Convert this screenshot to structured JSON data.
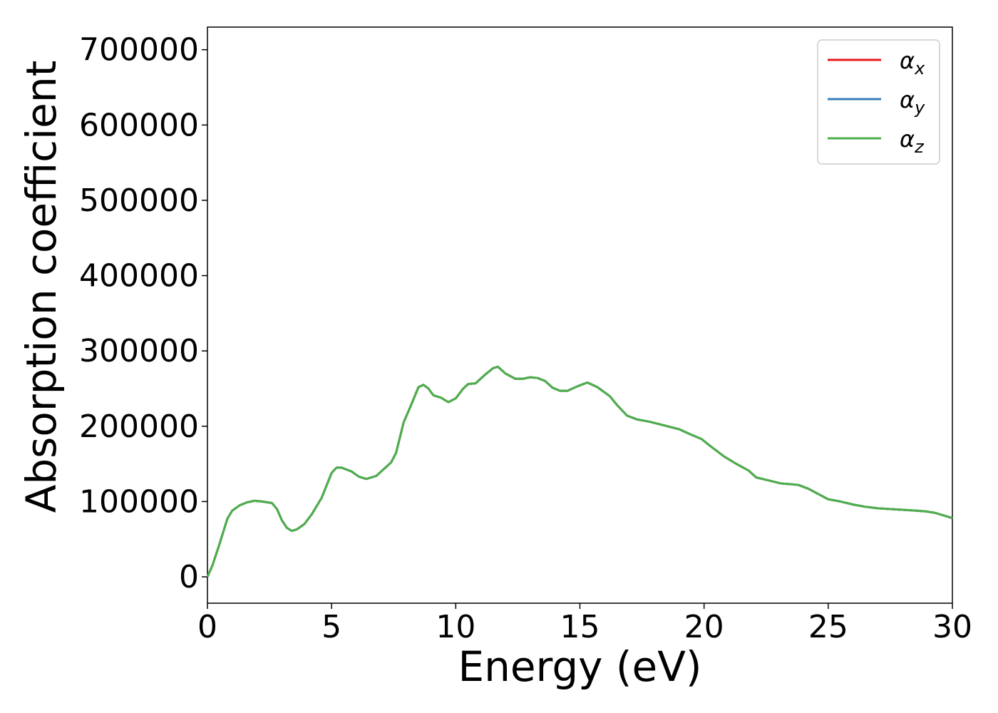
{
  "chart_data": {
    "type": "line",
    "title": "",
    "xlabel": "Energy (eV)",
    "ylabel": "Absorption coefficient",
    "xlim": [
      0,
      30
    ],
    "ylim": [
      -35000,
      730000
    ],
    "xticks": [
      0,
      5,
      10,
      15,
      20,
      25,
      30
    ],
    "yticks": [
      0,
      100000,
      200000,
      300000,
      400000,
      500000,
      600000,
      700000
    ],
    "grid": false,
    "legend_position": "top-right",
    "series": [
      {
        "name": "x",
        "color": "#e41a1c",
        "ref": "s0"
      },
      {
        "name": "y",
        "color": "#377eb8",
        "ref": "s0"
      },
      {
        "name": "z",
        "color": "#4daf4a",
        "ref": "s0"
      }
    ],
    "shared_curve": {
      "s0": {
        "x": [
          0,
          0.2,
          0.5,
          0.8,
          1.0,
          1.3,
          1.6,
          1.9,
          2.2,
          2.6,
          2.8,
          3.0,
          3.2,
          3.4,
          3.6,
          3.9,
          4.2,
          4.6,
          5.0,
          5.2,
          5.4,
          5.8,
          6.1,
          6.4,
          6.8,
          7.0,
          7.4,
          7.6,
          7.9,
          8.2,
          8.5,
          8.7,
          8.9,
          9.1,
          9.4,
          9.7,
          10.0,
          10.3,
          10.5,
          10.8,
          11.2,
          11.5,
          11.7,
          12.0,
          12.4,
          12.7,
          13.0,
          13.3,
          13.6,
          13.9,
          14.2,
          14.5,
          14.9,
          15.3,
          15.7,
          16.2,
          16.5,
          16.9,
          17.3,
          17.8,
          18.4,
          19.0,
          19.4,
          19.9,
          20.2,
          20.8,
          21.3,
          21.8,
          22.1,
          22.6,
          23.1,
          23.5,
          23.8,
          24.2,
          24.6,
          25.0,
          25.5,
          26.0,
          26.5,
          27.0,
          27.5,
          28.0,
          28.5,
          28.9,
          29.3,
          29.7,
          30.0
        ],
        "y": [
          0,
          15000,
          45000,
          77000,
          88000,
          95000,
          99000,
          101000,
          100000,
          98000,
          90000,
          75000,
          65000,
          61000,
          63000,
          70000,
          83000,
          105000,
          138000,
          145000,
          145000,
          140000,
          133000,
          130000,
          134000,
          140000,
          152000,
          165000,
          205000,
          228000,
          252000,
          255000,
          250000,
          241000,
          238000,
          232000,
          237000,
          250000,
          256000,
          257000,
          269000,
          277000,
          279000,
          270000,
          263000,
          263000,
          265000,
          264000,
          260000,
          251000,
          247000,
          247000,
          253000,
          258000,
          252000,
          240000,
          228000,
          214000,
          209000,
          206000,
          201000,
          196000,
          190000,
          183000,
          175000,
          160000,
          150000,
          141000,
          132000,
          128000,
          124000,
          123000,
          122000,
          117000,
          110000,
          103000,
          100000,
          96000,
          93000,
          91000,
          90000,
          89000,
          88000,
          87000,
          85000,
          81000,
          78000
        ]
      }
    }
  }
}
